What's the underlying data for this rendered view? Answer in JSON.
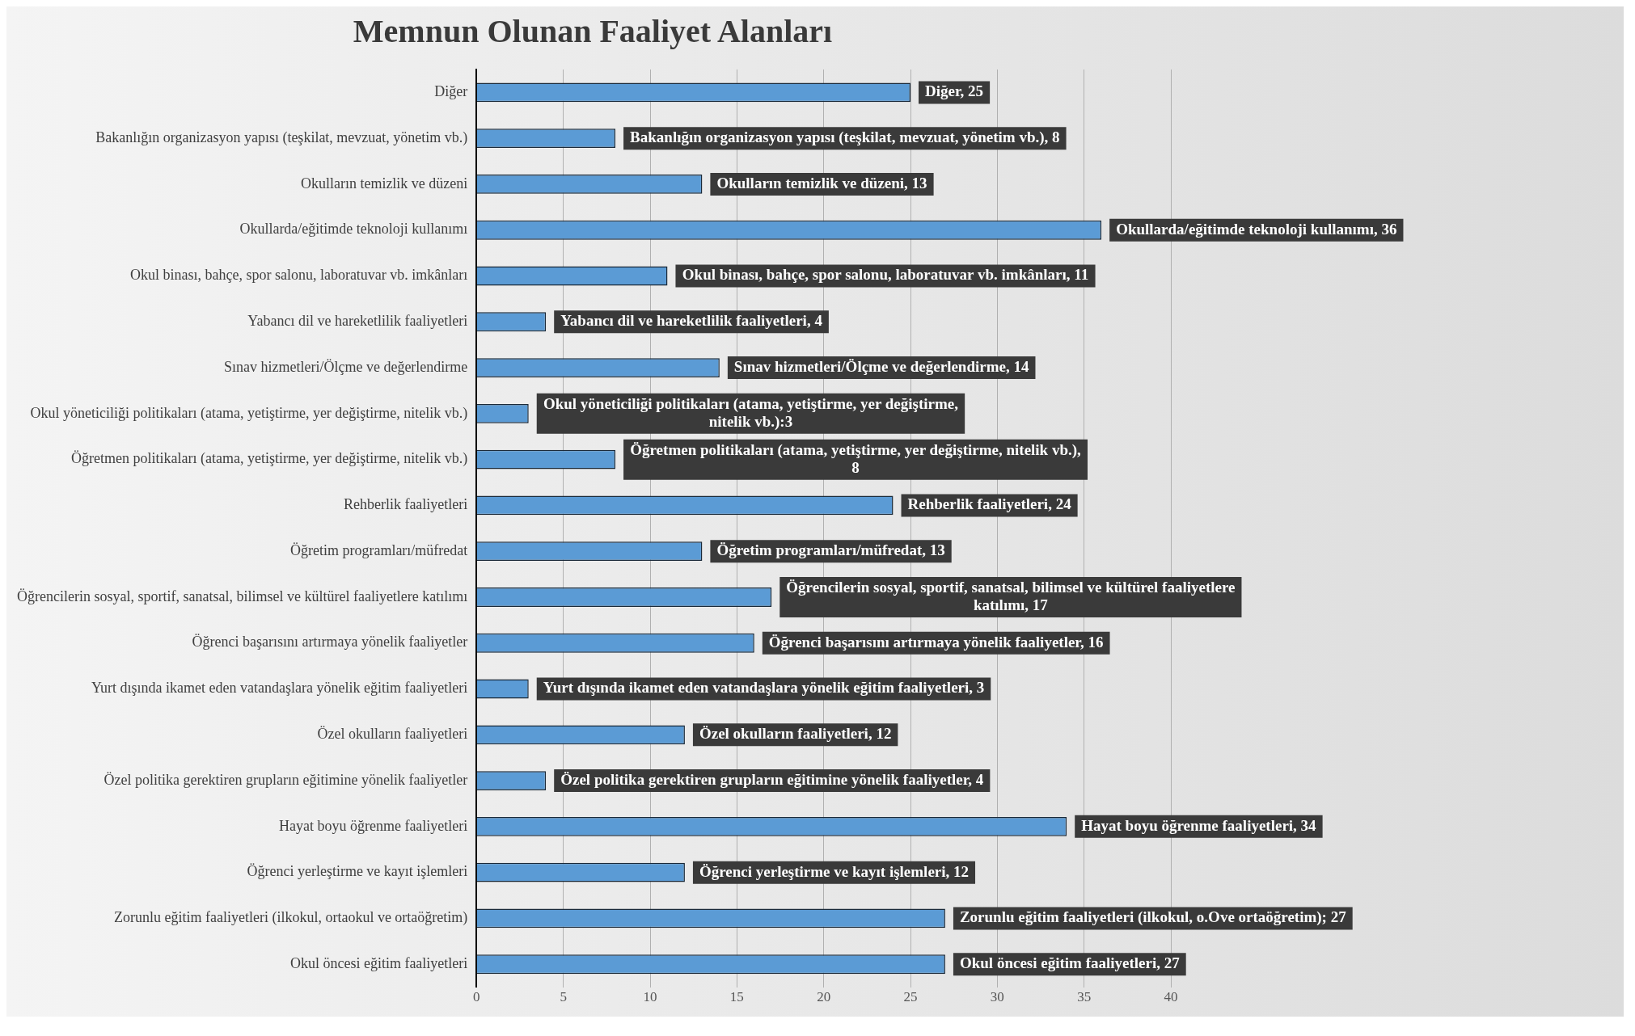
{
  "chart_data": {
    "type": "bar",
    "orientation": "horizontal",
    "title": "Memnun Olunan Faaliyet Alanları",
    "categories": [
      "Diğer",
      "Bakanlığın organizasyon yapısı (teşkilat, mevzuat, yönetim vb.)",
      "Okulların temizlik ve düzeni",
      "Okullarda/eğitimde teknoloji kullanımı",
      "Okul binası, bahçe, spor salonu, laboratuvar vb. imkânları",
      "Yabancı dil ve hareketlilik faaliyetleri",
      "Sınav hizmetleri/Ölçme ve değerlendirme",
      "Okul yöneticiliği politikaları (atama, yetiştirme, yer değiştirme, nitelik vb.)",
      "Öğretmen politikaları (atama, yetiştirme, yer değiştirme, nitelik vb.)",
      "Rehberlik faaliyetleri",
      "Öğretim programları/müfredat",
      "Öğrencilerin sosyal, sportif, sanatsal, bilimsel ve kültürel faaliyetlere katılımı",
      "Öğrenci başarısını artırmaya yönelik faaliyetler",
      "Yurt dışında ikamet eden vatandaşlara yönelik eğitim faaliyetleri",
      "Özel okulların faaliyetleri",
      "Özel politika gerektiren grupların eğitimine yönelik faaliyetler",
      "Hayat boyu öğrenme faaliyetleri",
      "Öğrenci yerleştirme ve kayıt işlemleri",
      "Zorunlu eğitim faaliyetleri (ilkokul, ortaokul ve ortaöğretim)",
      "Okul öncesi eğitim faaliyetleri"
    ],
    "values": [
      25,
      8,
      13,
      36,
      11,
      4,
      14,
      3,
      8,
      24,
      13,
      17,
      16,
      3,
      12,
      4,
      34,
      12,
      27,
      27
    ],
    "value_labels": [
      "Diğer, 25",
      "Bakanlığın organizasyon yapısı (teşkilat, mevzuat, yönetim vb.), 8",
      "Okulların temizlik ve düzeni, 13",
      "Okullarda/eğitimde teknoloji kullanımı, 36",
      "Okul binası, bahçe, spor salonu, laboratuvar vb. imkânları, 11",
      "Yabancı dil ve hareketlilik faaliyetleri, 4",
      "Sınav hizmetleri/Ölçme ve değerlendirme, 14",
      "Okul yöneticiliği politikaları (atama, yetiştirme, yer değiştirme, nitelik vb.):3",
      "Öğretmen politikaları (atama, yetiştirme, yer değiştirme, nitelik vb.), 8",
      "Rehberlik faaliyetleri, 24",
      "Öğretim programları/müfredat, 13",
      "Öğrencilerin sosyal, sportif, sanatsal, bilimsel ve kültürel faaliyetlere katılımı, 17",
      "Öğrenci başarısını artırmaya yönelik faaliyetler, 16",
      "Yurt dışında ikamet eden vatandaşlara yönelik eğitim faaliyetleri, 3",
      "Özel okulların faaliyetleri, 12",
      "Özel politika gerektiren grupların eğitimine yönelik faaliyetler, 4",
      "Hayat boyu öğrenme faaliyetleri, 34",
      "Öğrenci yerleştirme ve kayıt işlemleri, 12",
      "Zorunlu eğitim faaliyetleri (ilkokul, o.Ove ortaöğretim); 27",
      "Okul öncesi eğitim faaliyetleri, 27"
    ],
    "color": "#5b9bd5",
    "xlim": [
      0,
      40
    ],
    "xticks": [
      0,
      5,
      10,
      15,
      20,
      25,
      30,
      35,
      40
    ],
    "grid": "x"
  }
}
